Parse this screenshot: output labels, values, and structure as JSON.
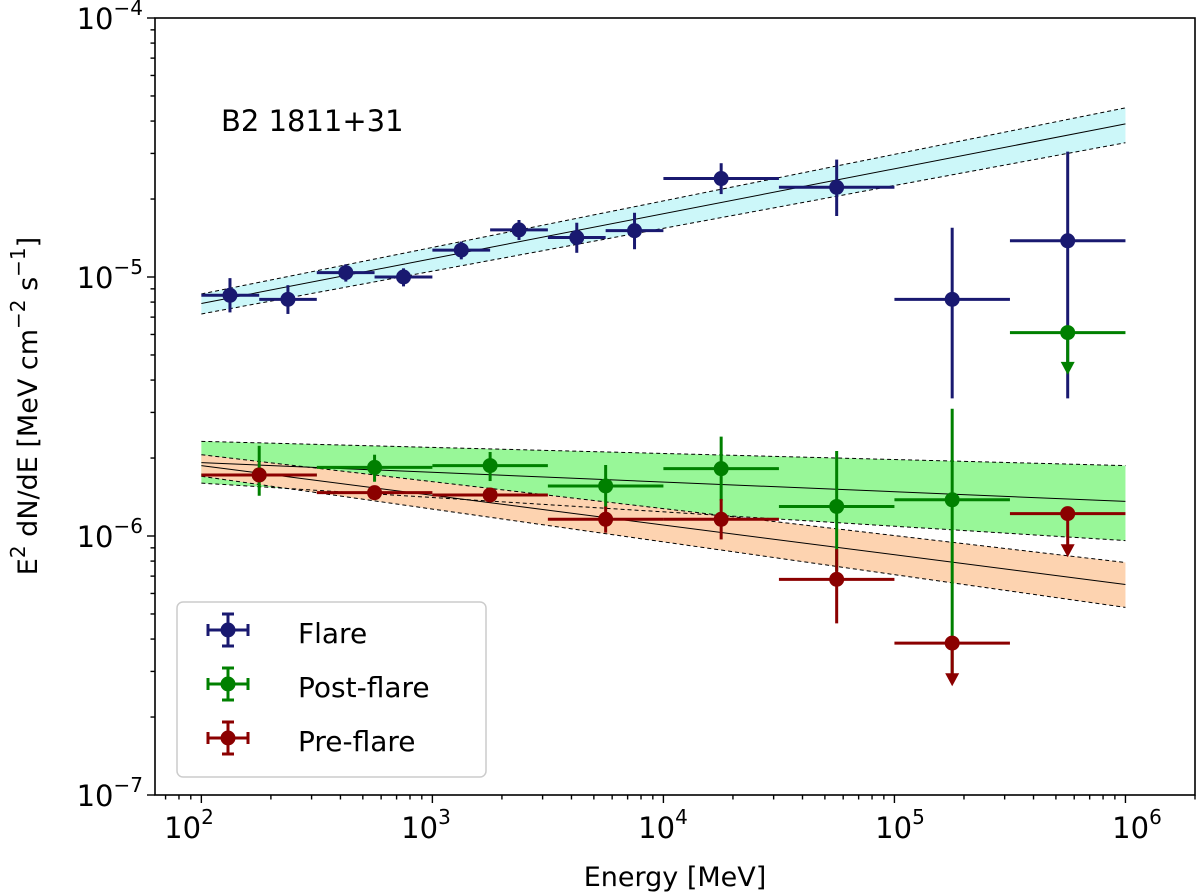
{
  "chart_data": {
    "type": "scatter",
    "title": "B2 1811+31",
    "xlabel": "Energy [MeV]",
    "ylabel": {
      "prefix": "E",
      "sup": "2",
      "main": " dN/dE [MeV cm",
      "sup2": "−2",
      "mid": " s",
      "sup3": "−1",
      "end": "]"
    },
    "xscale": "log",
    "yscale": "log",
    "xlim": [
      63,
      2000000
    ],
    "ylim": [
      1e-07,
      0.0001
    ],
    "xticks": [
      {
        "base": "10",
        "exp": "2"
      },
      {
        "base": "10",
        "exp": "3"
      },
      {
        "base": "10",
        "exp": "4"
      },
      {
        "base": "10",
        "exp": "5"
      },
      {
        "base": "10",
        "exp": "6"
      }
    ],
    "yticks": [
      {
        "base": "10",
        "exp": "−7"
      },
      {
        "base": "10",
        "exp": "−6"
      },
      {
        "base": "10",
        "exp": "−5"
      },
      {
        "base": "10",
        "exp": "−4"
      }
    ],
    "legend_position": "lower-left",
    "series": [
      {
        "name": "Flare",
        "color": "#191970",
        "band_fill": "#ccf7f9",
        "model": {
          "x0": 100,
          "x1": 1000000,
          "y0": 7.9e-06,
          "y1": 3.9e-05,
          "up0": 8.6e-06,
          "up1": 4.5e-05,
          "lo0": 7.2e-06,
          "lo1": 3.3e-05
        },
        "points": [
          {
            "x": 133,
            "y": 8.5e-06,
            "xlo": 100,
            "xhi": 178,
            "ylo": 7.3e-06,
            "yhi": 9.9e-06
          },
          {
            "x": 237,
            "y": 8.2e-06,
            "xlo": 178,
            "xhi": 316,
            "ylo": 7.2e-06,
            "yhi": 9.3e-06
          },
          {
            "x": 422,
            "y": 1.04e-05,
            "xlo": 316,
            "xhi": 562,
            "ylo": 9.6e-06,
            "yhi": 1.12e-05
          },
          {
            "x": 750,
            "y": 1e-05,
            "xlo": 562,
            "xhi": 1000,
            "ylo": 9.2e-06,
            "yhi": 1.08e-05
          },
          {
            "x": 1334,
            "y": 1.27e-05,
            "xlo": 1000,
            "xhi": 1778,
            "ylo": 1.17e-05,
            "yhi": 1.37e-05
          },
          {
            "x": 2371,
            "y": 1.52e-05,
            "xlo": 1778,
            "xhi": 3162,
            "ylo": 1.39e-05,
            "yhi": 1.66e-05
          },
          {
            "x": 4217,
            "y": 1.42e-05,
            "xlo": 3162,
            "xhi": 5623,
            "ylo": 1.24e-05,
            "yhi": 1.62e-05
          },
          {
            "x": 7499,
            "y": 1.51e-05,
            "xlo": 5623,
            "xhi": 10000,
            "ylo": 1.28e-05,
            "yhi": 1.77e-05
          },
          {
            "x": 17783,
            "y": 2.4e-05,
            "xlo": 10000,
            "xhi": 31623,
            "ylo": 2.09e-05,
            "yhi": 2.75e-05
          },
          {
            "x": 56234,
            "y": 2.22e-05,
            "xlo": 31623,
            "xhi": 100000,
            "ylo": 1.72e-05,
            "yhi": 2.84e-05
          },
          {
            "x": 177828,
            "y": 8.2e-06,
            "xlo": 100000,
            "xhi": 316228,
            "ylo": 3.4e-06,
            "yhi": 1.55e-05
          },
          {
            "x": 562341,
            "y": 1.38e-05,
            "xlo": 316228,
            "xhi": 1000000,
            "ylo": 3.4e-06,
            "yhi": 3.05e-05
          }
        ]
      },
      {
        "name": "Post-flare",
        "color": "#008000",
        "band_fill": "#98f798",
        "model": {
          "x0": 100,
          "x1": 1000000,
          "y0": 1.92e-06,
          "y1": 1.36e-06,
          "up0": 2.32e-06,
          "up1": 1.87e-06,
          "lo0": 1.6e-06,
          "lo1": 9.6e-07
        },
        "points": [
          {
            "x": 178,
            "y": 1.72e-06,
            "xlo": 100,
            "xhi": 316,
            "ylo": 1.43e-06,
            "yhi": 2.23e-06
          },
          {
            "x": 562,
            "y": 1.84e-06,
            "xlo": 316,
            "xhi": 1000,
            "ylo": 1.62e-06,
            "yhi": 2.06e-06
          },
          {
            "x": 1778,
            "y": 1.87e-06,
            "xlo": 1000,
            "xhi": 3162,
            "ylo": 1.63e-06,
            "yhi": 2.11e-06
          },
          {
            "x": 5623,
            "y": 1.56e-06,
            "xlo": 3162,
            "xhi": 10000,
            "ylo": 1.28e-06,
            "yhi": 1.88e-06
          },
          {
            "x": 17783,
            "y": 1.82e-06,
            "xlo": 10000,
            "xhi": 31623,
            "ylo": 1.37e-06,
            "yhi": 2.42e-06
          },
          {
            "x": 56234,
            "y": 1.3e-06,
            "xlo": 31623,
            "xhi": 100000,
            "ylo": 7.3e-07,
            "yhi": 2.13e-06
          },
          {
            "x": 177828,
            "y": 1.38e-06,
            "xlo": 100000,
            "xhi": 316228,
            "ylo": 2.72e-07,
            "yhi": 3.1e-06
          },
          {
            "x": 562341,
            "y": 6.1e-06,
            "xlo": 316228,
            "xhi": 1000000,
            "upper_limit": true,
            "arrow_to": 4.3e-06
          }
        ]
      },
      {
        "name": "Pre-flare",
        "color": "#8b0000",
        "band_fill": "#fdd3b0",
        "model": {
          "x0": 100,
          "x1": 1000000,
          "y0": 1.87e-06,
          "y1": 6.5e-07,
          "up0": 2.06e-06,
          "up1": 7.9e-07,
          "lo0": 1.7e-06,
          "lo1": 5.3e-07
        },
        "points": [
          {
            "x": 178,
            "y": 1.72e-06,
            "xlo": 100,
            "xhi": 316,
            "ylo": 1.63e-06,
            "yhi": 1.82e-06
          },
          {
            "x": 562,
            "y": 1.47e-06,
            "xlo": 316,
            "xhi": 1000,
            "ylo": 1.4e-06,
            "yhi": 1.55e-06
          },
          {
            "x": 1778,
            "y": 1.44e-06,
            "xlo": 1000,
            "xhi": 3162,
            "ylo": 1.37e-06,
            "yhi": 1.52e-06
          },
          {
            "x": 5623,
            "y": 1.16e-06,
            "xlo": 3162,
            "xhi": 10000,
            "ylo": 1.03e-06,
            "yhi": 1.3e-06
          },
          {
            "x": 17783,
            "y": 1.16e-06,
            "xlo": 10000,
            "xhi": 31623,
            "ylo": 9.7e-07,
            "yhi": 1.39e-06
          },
          {
            "x": 56234,
            "y": 6.8e-07,
            "xlo": 31623,
            "xhi": 100000,
            "ylo": 4.6e-07,
            "yhi": 8.9e-07
          },
          {
            "x": 177828,
            "y": 3.86e-07,
            "xlo": 100000,
            "xhi": 316228,
            "upper_limit": true,
            "arrow_to": 2.7e-07
          },
          {
            "x": 562341,
            "y": 1.22e-06,
            "xlo": 316228,
            "xhi": 1000000,
            "upper_limit": true,
            "arrow_to": 8.5e-07
          }
        ]
      }
    ]
  }
}
